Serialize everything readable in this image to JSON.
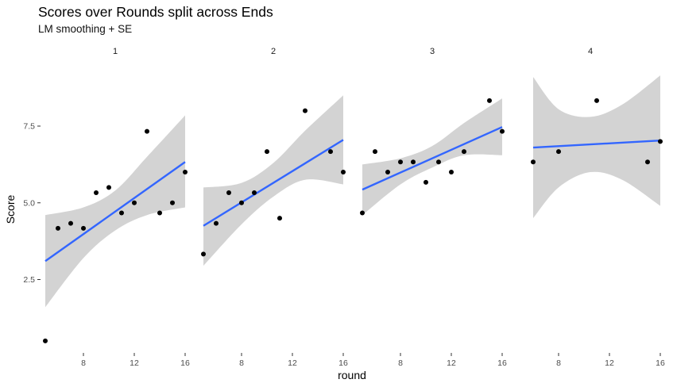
{
  "chart_data": {
    "type": "scatter",
    "title": "Scores over Rounds split across Ends",
    "subtitle": "LM smoothing + SE",
    "xlabel": "round",
    "ylabel": "Score",
    "xlim": [
      4.8,
      16.2
    ],
    "ylim": [
      0.3,
      9.3
    ],
    "x_ticks": [
      8,
      12,
      16
    ],
    "x_tick_labels": [
      "8",
      "12",
      "16"
    ],
    "y_ticks": [
      2.5,
      5.0,
      7.5
    ],
    "y_tick_labels": [
      "2.5",
      "5.0",
      "7.5"
    ],
    "grid": false,
    "legend": "none",
    "colors": {
      "points": "#000000",
      "line": "#3366ff",
      "ribbon": "#d3d3d3"
    },
    "facets": [
      {
        "label": "1",
        "points": [
          {
            "x": 5,
            "y": 0.5
          },
          {
            "x": 6,
            "y": 4.17
          },
          {
            "x": 7,
            "y": 4.33
          },
          {
            "x": 8,
            "y": 4.17
          },
          {
            "x": 9,
            "y": 5.33
          },
          {
            "x": 10,
            "y": 5.5
          },
          {
            "x": 11,
            "y": 4.67
          },
          {
            "x": 12,
            "y": 5.0
          },
          {
            "x": 13,
            "y": 7.33
          },
          {
            "x": 14,
            "y": 4.67
          },
          {
            "x": 15,
            "y": 5.0
          },
          {
            "x": 16,
            "y": 6.0
          }
        ],
        "fit": {
          "x": [
            5,
            16
          ],
          "y": [
            3.1,
            6.33
          ]
        },
        "band": [
          {
            "x": 5,
            "lower": 1.6,
            "upper": 4.6
          },
          {
            "x": 8,
            "lower": 3.2,
            "upper": 4.85
          },
          {
            "x": 10.5,
            "lower": 4.1,
            "upper": 5.4
          },
          {
            "x": 13,
            "lower": 4.6,
            "upper": 6.5
          },
          {
            "x": 16,
            "lower": 4.85,
            "upper": 7.85
          }
        ]
      },
      {
        "label": "2",
        "points": [
          {
            "x": 5,
            "y": 3.33
          },
          {
            "x": 6,
            "y": 4.33
          },
          {
            "x": 7,
            "y": 5.33
          },
          {
            "x": 8,
            "y": 5.0
          },
          {
            "x": 9,
            "y": 5.33
          },
          {
            "x": 10,
            "y": 6.67
          },
          {
            "x": 11,
            "y": 4.5
          },
          {
            "x": 13,
            "y": 8.0
          },
          {
            "x": 15,
            "y": 6.67
          },
          {
            "x": 16,
            "y": 6.0
          }
        ],
        "fit": {
          "x": [
            5,
            16
          ],
          "y": [
            4.25,
            7.05
          ]
        },
        "band": [
          {
            "x": 5,
            "lower": 2.95,
            "upper": 5.5
          },
          {
            "x": 8,
            "lower": 4.3,
            "upper": 5.65
          },
          {
            "x": 10.5,
            "lower": 5.2,
            "upper": 6.3
          },
          {
            "x": 13,
            "lower": 5.75,
            "upper": 7.35
          },
          {
            "x": 16,
            "lower": 5.6,
            "upper": 8.5
          }
        ]
      },
      {
        "label": "3",
        "points": [
          {
            "x": 5,
            "y": 4.67
          },
          {
            "x": 6,
            "y": 6.67
          },
          {
            "x": 7,
            "y": 6.0
          },
          {
            "x": 8,
            "y": 6.33
          },
          {
            "x": 9,
            "y": 6.33
          },
          {
            "x": 10,
            "y": 5.67
          },
          {
            "x": 11,
            "y": 6.33
          },
          {
            "x": 12,
            "y": 6.0
          },
          {
            "x": 13,
            "y": 6.67
          },
          {
            "x": 15,
            "y": 8.33
          },
          {
            "x": 16,
            "y": 7.33
          }
        ],
        "fit": {
          "x": [
            5,
            16
          ],
          "y": [
            5.43,
            7.47
          ]
        },
        "band": [
          {
            "x": 5,
            "lower": 4.6,
            "upper": 6.25
          },
          {
            "x": 8,
            "lower": 5.6,
            "upper": 6.45
          },
          {
            "x": 10.5,
            "lower": 6.15,
            "upper": 6.85
          },
          {
            "x": 13,
            "lower": 6.55,
            "upper": 7.6
          },
          {
            "x": 16,
            "lower": 6.55,
            "upper": 8.4
          }
        ]
      },
      {
        "label": "4",
        "points": [
          {
            "x": 6,
            "y": 6.33
          },
          {
            "x": 8,
            "y": 6.67
          },
          {
            "x": 11,
            "y": 8.33
          },
          {
            "x": 15,
            "y": 6.33
          },
          {
            "x": 16,
            "y": 7.0
          }
        ],
        "fit": {
          "x": [
            6,
            16
          ],
          "y": [
            6.8,
            7.03
          ]
        },
        "band": [
          {
            "x": 6,
            "lower": 4.5,
            "upper": 9.1
          },
          {
            "x": 8,
            "lower": 5.5,
            "upper": 8.05
          },
          {
            "x": 10.5,
            "lower": 6.0,
            "upper": 7.8
          },
          {
            "x": 13,
            "lower": 5.75,
            "upper": 8.2
          },
          {
            "x": 16,
            "lower": 4.9,
            "upper": 9.15
          }
        ]
      }
    ]
  }
}
